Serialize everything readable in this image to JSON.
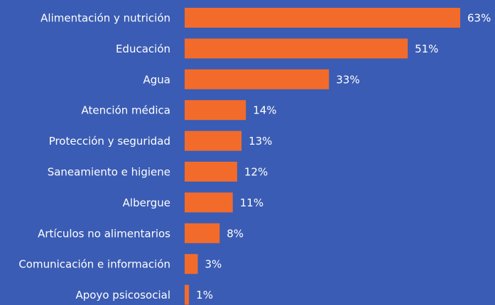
{
  "chart_data": {
    "type": "bar",
    "orientation": "horizontal",
    "color": "#f36b2a",
    "categories": [
      "Alimentación y nutrición",
      "Educación",
      "Agua",
      "Atención médica",
      "Protección y seguridad",
      "Saneamiento e higiene",
      "Albergue",
      "Artículos no alimentarios",
      "Comunicación e información",
      "Apoyo psicosocial"
    ],
    "values": [
      63,
      51,
      33,
      14,
      13,
      12,
      11,
      8,
      3,
      1
    ],
    "value_labels": [
      "63%",
      "51%",
      "33%",
      "14%",
      "13%",
      "12%",
      "11%",
      "8%",
      "3%",
      "1%"
    ]
  }
}
